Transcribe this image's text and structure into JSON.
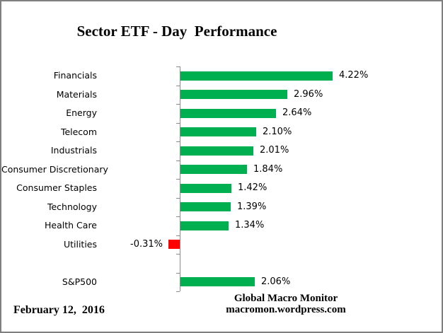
{
  "title": "Sector ETF - Day  Performance",
  "footer": {
    "date": "February 12,  2016",
    "attribution_line1": "Global Macro Monitor",
    "attribution_line2": "macromon.wordpress.com"
  },
  "colors": {
    "bar_positive": "#00B050",
    "bar_negative": "#FF0000",
    "axis": "#8C8C8C",
    "frame_border": "#7F7F7F",
    "text": "#000000"
  },
  "chart_data": {
    "type": "bar",
    "orientation": "horizontal",
    "title": "Sector ETF - Day  Performance",
    "categories": [
      "Financials",
      "Materials",
      "Energy",
      "Telecom",
      "Industrials",
      "Consumer Discretionary",
      "Consumer Staples",
      "Technology",
      "Health Care",
      "Utilities",
      "",
      "S&P500"
    ],
    "values": [
      4.22,
      2.96,
      2.64,
      2.1,
      2.01,
      1.84,
      1.42,
      1.39,
      1.34,
      -0.31,
      null,
      2.06
    ],
    "value_labels": [
      "4.22%",
      "2.96%",
      "2.64%",
      "2.10%",
      "2.01%",
      "1.84%",
      "1.42%",
      "1.39%",
      "1.34%",
      "-0.31%",
      "",
      "2.06%"
    ],
    "xlabel": "",
    "ylabel": "",
    "xlim": [
      -0.5,
      4.5
    ],
    "grid": false,
    "legend": false,
    "data_labels": true
  }
}
